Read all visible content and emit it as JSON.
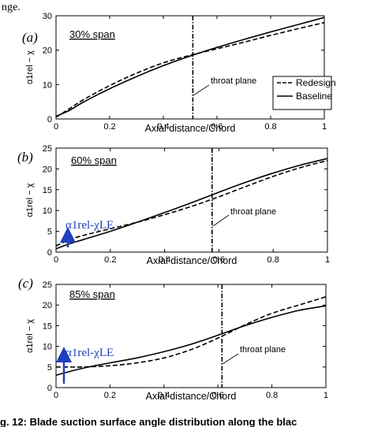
{
  "top_text_fragment": "nge.",
  "caption_fragment": "g. 12: Blade suction surface angle distribution along the blac",
  "colors": {
    "line": "#000000",
    "arrow": "#1f3fbf",
    "annotation": "#1f3fbf"
  },
  "chart_data": [
    {
      "type": "line",
      "panel_label": "(a)",
      "span_label": "30% span",
      "xlabel": "Axial distance/Chord",
      "ylabel": "α1rel − χ",
      "xlim": [
        0,
        1
      ],
      "ylim": [
        0,
        30
      ],
      "xticks": [
        "0",
        "0.2",
        "0.4",
        "0.6",
        "0.8",
        "1"
      ],
      "yticks": [
        "0",
        "10",
        "20",
        "30"
      ],
      "ytick_values": [
        0,
        10,
        20,
        30
      ],
      "grid": false,
      "throat_x": 0.51,
      "throat_label": "throat plane",
      "legend": {
        "position": "right",
        "entries": [
          "Redesign",
          "Baseline"
        ]
      },
      "annotation": "",
      "annotation_x": null,
      "series": [
        {
          "name": "Redesign",
          "style": "dashed",
          "x": [
            0,
            0.05,
            0.1,
            0.2,
            0.3,
            0.4,
            0.5,
            0.6,
            0.7,
            0.8,
            0.9,
            1.0
          ],
          "y": [
            0.5,
            3.0,
            5.5,
            9.7,
            13.3,
            16.3,
            18.5,
            20.4,
            22.3,
            24.3,
            26.2,
            28.0
          ]
        },
        {
          "name": "Baseline",
          "style": "solid",
          "x": [
            0,
            0.05,
            0.1,
            0.2,
            0.3,
            0.4,
            0.5,
            0.6,
            0.7,
            0.8,
            0.9,
            1.0
          ],
          "y": [
            0.8,
            2.5,
            4.8,
            8.8,
            12.3,
            15.5,
            18.3,
            20.8,
            23.1,
            25.3,
            27.4,
            29.5
          ]
        }
      ]
    },
    {
      "type": "line",
      "panel_label": "(b)",
      "span_label": "60% span",
      "xlabel": "Axial distance/Chord",
      "ylabel": "α1rel − χ",
      "xlim": [
        0,
        1
      ],
      "ylim": [
        0,
        25
      ],
      "xticks": [
        "0",
        "0.2",
        "0.4",
        "0.6",
        "0.8",
        "1"
      ],
      "yticks": [
        "0",
        "5",
        "10",
        "15",
        "20",
        "25"
      ],
      "ytick_values": [
        0,
        5,
        10,
        15,
        20,
        25
      ],
      "grid": false,
      "throat_x": 0.575,
      "throat_label": "throat plane",
      "legend": null,
      "annotation": "α1rel-χLE",
      "annotation_x": 0.05,
      "series": [
        {
          "name": "Redesign",
          "style": "dashed",
          "x": [
            0,
            0.05,
            0.1,
            0.2,
            0.3,
            0.4,
            0.5,
            0.6,
            0.7,
            0.8,
            0.9,
            1.0
          ],
          "y": [
            1.5,
            3.0,
            4.0,
            5.6,
            7.2,
            9.0,
            11.0,
            13.3,
            15.8,
            18.2,
            20.3,
            22.0
          ]
        },
        {
          "name": "Baseline",
          "style": "solid",
          "x": [
            0,
            0.05,
            0.1,
            0.2,
            0.3,
            0.4,
            0.5,
            0.6,
            0.7,
            0.8,
            0.9,
            1.0
          ],
          "y": [
            0.8,
            2.0,
            3.0,
            5.0,
            7.2,
            9.5,
            11.9,
            14.4,
            16.8,
            19.0,
            20.9,
            22.5
          ]
        }
      ]
    },
    {
      "type": "line",
      "panel_label": "(c)",
      "span_label": "85% span",
      "xlabel": "Axial distance/Chord",
      "ylabel": "α1rel − χ",
      "xlim": [
        0,
        1
      ],
      "ylim": [
        0,
        25
      ],
      "xticks": [
        "0",
        "0.2",
        "0.4",
        "0.6",
        "0.8",
        "1"
      ],
      "yticks": [
        "0",
        "5",
        "10",
        "15",
        "20",
        "25"
      ],
      "ytick_values": [
        0,
        5,
        10,
        15,
        20,
        25
      ],
      "grid": false,
      "throat_x": 0.615,
      "throat_label": "throat plane",
      "legend": null,
      "annotation": "α1rel-χLE",
      "annotation_x": 0.04,
      "series": [
        {
          "name": "Redesign",
          "style": "dashed",
          "x": [
            0,
            0.05,
            0.1,
            0.2,
            0.3,
            0.4,
            0.5,
            0.6,
            0.7,
            0.8,
            0.9,
            1.0
          ],
          "y": [
            5.0,
            5.0,
            5.0,
            5.3,
            6.0,
            7.2,
            9.2,
            12.0,
            15.2,
            18.0,
            20.0,
            22.0
          ]
        },
        {
          "name": "Baseline",
          "style": "solid",
          "x": [
            0,
            0.05,
            0.1,
            0.2,
            0.3,
            0.4,
            0.5,
            0.6,
            0.7,
            0.8,
            0.9,
            1.0
          ],
          "y": [
            3.0,
            3.9,
            4.7,
            6.0,
            7.2,
            8.7,
            10.5,
            12.7,
            15.0,
            17.0,
            18.7,
            19.8
          ]
        }
      ]
    }
  ]
}
